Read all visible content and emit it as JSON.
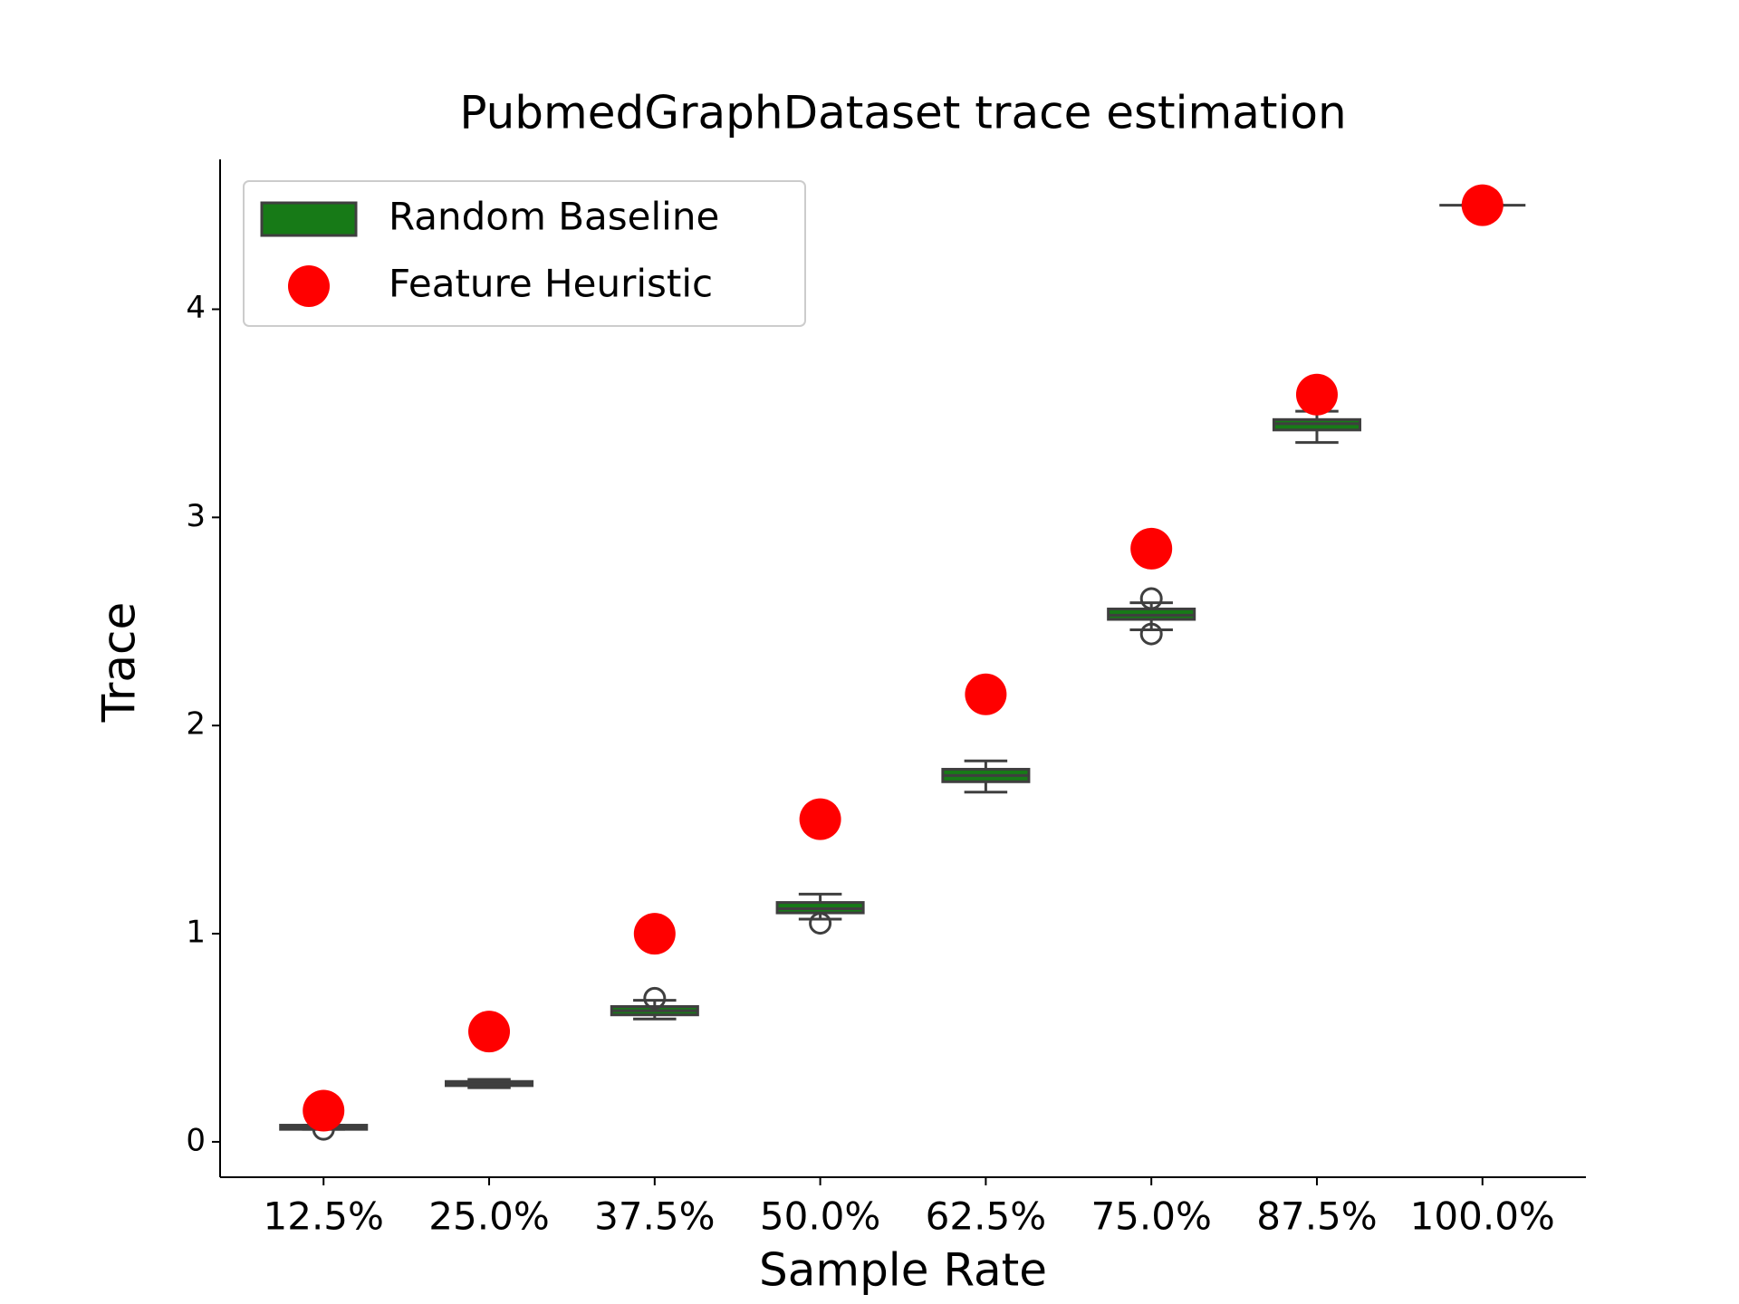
{
  "chart_data": {
    "type": "box",
    "title": "PubmedGraphDataset trace estimation",
    "x_label": "Sample Rate",
    "y_label": "Trace",
    "categories": [
      "12.5%",
      "25.0%",
      "37.5%",
      "50.0%",
      "62.5%",
      "75.0%",
      "87.5%",
      "100.0%"
    ],
    "ylim": [
      -0.17,
      4.72
    ],
    "yticks": [
      0,
      1,
      2,
      3,
      4
    ],
    "legend": "upper left",
    "series": [
      {
        "name": "Random Baseline",
        "type": "box",
        "color": "#177a17",
        "edgecolor": "#3f3f3f",
        "whislo": [
          0.06,
          0.26,
          0.59,
          1.07,
          1.68,
          2.46,
          3.36,
          4.5
        ],
        "q1": [
          0.06,
          0.27,
          0.61,
          1.1,
          1.73,
          2.51,
          3.42,
          4.5
        ],
        "median": [
          0.07,
          0.28,
          0.63,
          1.12,
          1.76,
          2.53,
          3.45,
          4.5
        ],
        "q3": [
          0.08,
          0.29,
          0.65,
          1.15,
          1.79,
          2.56,
          3.47,
          4.5
        ],
        "whishi": [
          0.08,
          0.3,
          0.68,
          1.19,
          1.83,
          2.59,
          3.51,
          4.5
        ],
        "outliers": [
          [
            0.06
          ],
          [],
          [
            0.69
          ],
          [
            1.05
          ],
          [],
          [
            2.61,
            2.44
          ],
          [],
          []
        ]
      },
      {
        "name": "Feature Heuristic",
        "type": "scatter",
        "color": "#ff0000",
        "values": [
          0.15,
          0.53,
          1.0,
          1.55,
          2.15,
          2.85,
          3.59,
          4.5
        ]
      }
    ]
  }
}
